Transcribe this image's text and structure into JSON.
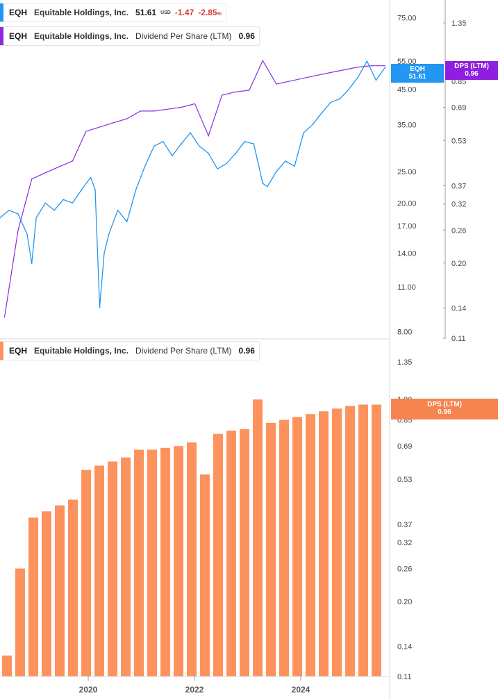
{
  "legend_price": {
    "ticker": "EQH",
    "company": "Equitable Holdings, Inc.",
    "price": "51.61",
    "currency": "USD",
    "change": "-1.47",
    "change_pct": "-2.85",
    "pct_sign": "%"
  },
  "legend_dps_top": {
    "ticker": "EQH",
    "company": "Equitable Holdings, Inc.",
    "metric": "Dividend Per Share (LTM)",
    "value": "0.96"
  },
  "legend_dps_bottom": {
    "ticker": "EQH",
    "company": "Equitable Holdings, Inc.",
    "metric": "Dividend Per Share (LTM)",
    "value": "0.96"
  },
  "tags": {
    "price_label": "EQH",
    "price_value": "51.61",
    "dps_label": "DPS (LTM)",
    "dps_value": "0.96",
    "bottom_dps_label": "DPS (LTM)",
    "bottom_dps_value": "0.96"
  },
  "colors": {
    "price": "#2196f3",
    "dps_line": "#8a2be2",
    "dps_tag": "#8f1fe0",
    "bars": "#fd925d",
    "bar_tag": "#f5844e",
    "negative": "#d23f31"
  },
  "chart_data": [
    {
      "type": "line",
      "title": "",
      "scale": "log",
      "series": [
        {
          "name": "EQH",
          "axis": "left",
          "x": [
            "2018-05",
            "2018-07",
            "2018-09",
            "2018-11",
            "2018-12",
            "2019-01",
            "2019-03",
            "2019-05",
            "2019-07",
            "2019-09",
            "2019-11",
            "2020-01",
            "2020-02",
            "2020-03",
            "2020-04",
            "2020-05",
            "2020-07",
            "2020-09",
            "2020-11",
            "2021-01",
            "2021-03",
            "2021-05",
            "2021-07",
            "2021-09",
            "2021-11",
            "2022-01",
            "2022-03",
            "2022-05",
            "2022-07",
            "2022-09",
            "2022-11",
            "2023-01",
            "2023-03",
            "2023-04",
            "2023-06",
            "2023-08",
            "2023-10",
            "2023-12",
            "2024-02",
            "2024-04",
            "2024-06",
            "2024-08",
            "2024-10",
            "2024-12",
            "2025-02",
            "2025-04",
            "2025-06"
          ],
          "values": [
            18.0,
            19.0,
            18.5,
            16.0,
            13.0,
            18.0,
            20.0,
            19.0,
            20.5,
            20.0,
            22.0,
            24.0,
            22.0,
            9.5,
            14.0,
            16.0,
            19.0,
            17.5,
            22.0,
            26.0,
            30.0,
            31.0,
            28.0,
            30.5,
            33.0,
            30.0,
            28.5,
            25.5,
            26.5,
            28.5,
            31.0,
            30.5,
            23.0,
            22.5,
            25.0,
            27.0,
            26.0,
            33.0,
            35.0,
            38.0,
            41.0,
            42.0,
            45.0,
            49.0,
            55.0,
            48.0,
            52.6
          ]
        },
        {
          "name": "Dividend Per Share (LTM)",
          "axis": "right",
          "x": [
            "2018-06",
            "2018-09",
            "2018-12",
            "2019-03",
            "2019-06",
            "2019-09",
            "2019-12",
            "2020-03",
            "2020-06",
            "2020-09",
            "2020-12",
            "2021-03",
            "2021-06",
            "2021-09",
            "2021-12",
            "2022-03",
            "2022-06",
            "2022-09",
            "2022-12",
            "2023-03",
            "2023-06",
            "2023-09",
            "2023-12",
            "2024-03",
            "2024-06",
            "2024-09",
            "2024-12",
            "2025-03",
            "2025-06"
          ],
          "values": [
            0.13,
            0.26,
            0.39,
            0.41,
            0.43,
            0.45,
            0.57,
            0.59,
            0.61,
            0.63,
            0.67,
            0.67,
            0.68,
            0.69,
            0.71,
            0.55,
            0.76,
            0.78,
            0.79,
            1.0,
            0.83,
            0.85,
            0.87,
            0.89,
            0.91,
            0.93,
            0.95,
            0.96,
            0.96
          ]
        }
      ],
      "left_axis": {
        "ticks": [
          "8.00",
          "11.00",
          "14.00",
          "17.00",
          "20.00",
          "25.00",
          "35.00",
          "45.00",
          "55.00",
          "75.00"
        ],
        "range": [
          7.9,
          85
        ]
      },
      "right_axis": {
        "ticks": [
          "0.11",
          "0.14",
          "0.20",
          "0.26",
          "0.32",
          "0.37",
          "0.53",
          "0.69",
          "0.85",
          "1.35"
        ],
        "range": [
          0.11,
          1.62
        ]
      }
    },
    {
      "type": "bar",
      "title": "",
      "scale": "log",
      "x": [
        "2018-06",
        "2018-09",
        "2018-12",
        "2019-03",
        "2019-06",
        "2019-09",
        "2019-12",
        "2020-03",
        "2020-06",
        "2020-09",
        "2020-12",
        "2021-03",
        "2021-06",
        "2021-09",
        "2021-12",
        "2022-03",
        "2022-06",
        "2022-09",
        "2022-12",
        "2023-03",
        "2023-06",
        "2023-09",
        "2023-12",
        "2024-03",
        "2024-06",
        "2024-09",
        "2024-12",
        "2025-03",
        "2025-06"
      ],
      "series": [
        {
          "name": "Dividend Per Share (LTM)",
          "values": [
            0.13,
            0.26,
            0.39,
            0.41,
            0.43,
            0.45,
            0.57,
            0.59,
            0.61,
            0.63,
            0.67,
            0.67,
            0.68,
            0.69,
            0.71,
            0.55,
            0.76,
            0.78,
            0.79,
            1.0,
            0.83,
            0.85,
            0.87,
            0.89,
            0.91,
            0.93,
            0.95,
            0.96,
            0.96
          ]
        }
      ],
      "y_axis": {
        "ticks": [
          "0.11",
          "0.14",
          "0.20",
          "0.26",
          "0.32",
          "0.37",
          "0.53",
          "0.69",
          "0.85",
          "1.00",
          "1.35"
        ],
        "range": [
          0.11,
          1.62
        ]
      },
      "x_axis": {
        "ticks": [
          "2020",
          "2022",
          "2024"
        ]
      }
    }
  ]
}
